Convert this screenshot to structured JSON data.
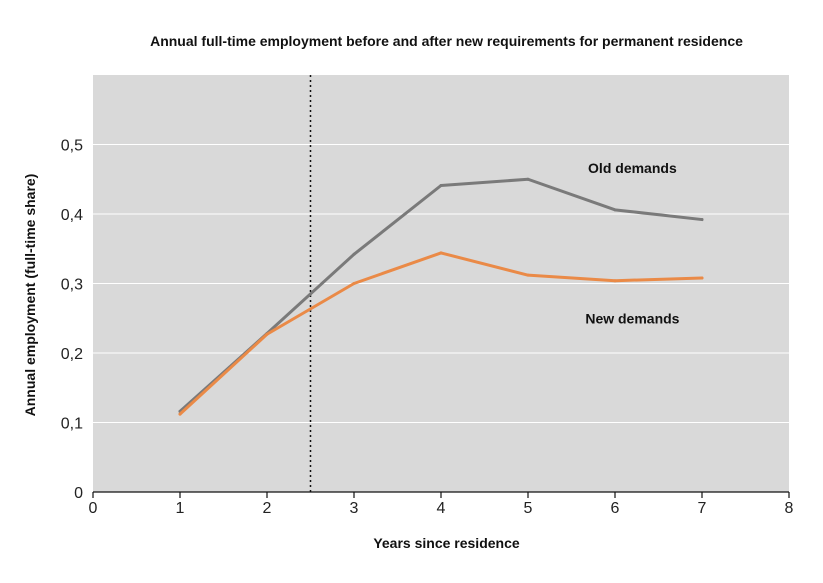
{
  "chart_data": {
    "type": "line",
    "title": "Annual full-time employment before and after new requirements for permanent residence",
    "xlabel": "Years since residence",
    "ylabel": "Annual employment (full-time share)",
    "xlim": [
      0,
      8
    ],
    "ylim": [
      0,
      0.6
    ],
    "x_ticks": [
      0,
      1,
      2,
      3,
      4,
      5,
      6,
      7,
      8
    ],
    "x_tick_labels": [
      "0",
      "1",
      "2",
      "3",
      "4",
      "5",
      "6",
      "7",
      "8"
    ],
    "y_ticks": [
      0,
      0.1,
      0.2,
      0.3,
      0.4,
      0.5
    ],
    "y_tick_labels": [
      "0",
      "0,1",
      "0,2",
      "0,3",
      "0,4",
      "0,5"
    ],
    "grid": "horizontal",
    "plot_background": "#d9d9d9",
    "reference_line": {
      "x": 2.5,
      "style": "dotted"
    },
    "series": [
      {
        "name": "Old demands",
        "color": "#7a7a7a",
        "x": [
          1,
          2,
          3,
          4,
          5,
          6,
          7
        ],
        "values": [
          0.116,
          0.228,
          0.342,
          0.441,
          0.45,
          0.406,
          0.392
        ],
        "label_at": {
          "x": 6.2,
          "y": 0.466
        }
      },
      {
        "name": "New demands",
        "color": "#ea8a47",
        "x": [
          1,
          2,
          3,
          4,
          5,
          6,
          7
        ],
        "values": [
          0.112,
          0.227,
          0.3,
          0.344,
          0.312,
          0.304,
          0.308
        ],
        "label_at": {
          "x": 6.2,
          "y": 0.25
        }
      }
    ]
  }
}
